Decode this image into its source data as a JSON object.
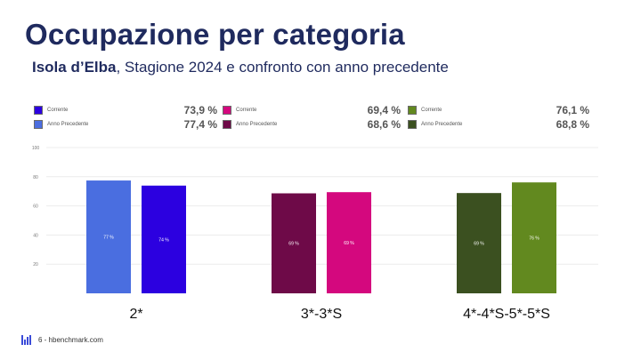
{
  "title": "Occupazione per categoria",
  "subtitle": {
    "bold": "Isola d’Elba",
    "rest": ", Stagione 2024 e confronto con anno precedente"
  },
  "legend_groups": [
    {
      "current_label": "Corrente",
      "previous_label": "Anno Precedente",
      "current_value": "73,9 %",
      "previous_value": "77,4 %",
      "current_color": "#2c00e0",
      "previous_color": "#4c6ee0"
    },
    {
      "current_label": "Corrente",
      "previous_label": "Anno Precedente",
      "current_value": "69,4 %",
      "previous_value": "68,6 %",
      "current_color": "#d4087e",
      "previous_color": "#6e0a48"
    },
    {
      "current_label": "Corrente",
      "previous_label": "Anno Precedente",
      "current_value": "76,1 %",
      "previous_value": "68,8 %",
      "current_color": "#62891f",
      "previous_color": "#3b5020"
    }
  ],
  "chart_data": {
    "type": "bar",
    "categories": [
      "2*",
      "3*-3*S",
      "4*-4*S-5*-5*S"
    ],
    "series": [
      {
        "name": "Anno Precedente",
        "values": [
          77.4,
          68.6,
          68.8
        ],
        "labels": [
          "77 %",
          "69 %",
          "69 %"
        ],
        "colors": [
          "#4a6ee0",
          "#6e0a48",
          "#3b5020"
        ]
      },
      {
        "name": "Corrente",
        "values": [
          73.9,
          69.4,
          76.1
        ],
        "labels": [
          "74 %",
          "69 %",
          "76 %"
        ],
        "colors": [
          "#2c00e0",
          "#d4087e",
          "#62891f"
        ]
      }
    ],
    "ylim": [
      0,
      100
    ],
    "yticks": [
      "20",
      "40",
      "60",
      "80",
      "100"
    ],
    "grid": true
  },
  "footer": {
    "text": "6 - hbenchmark.com"
  }
}
